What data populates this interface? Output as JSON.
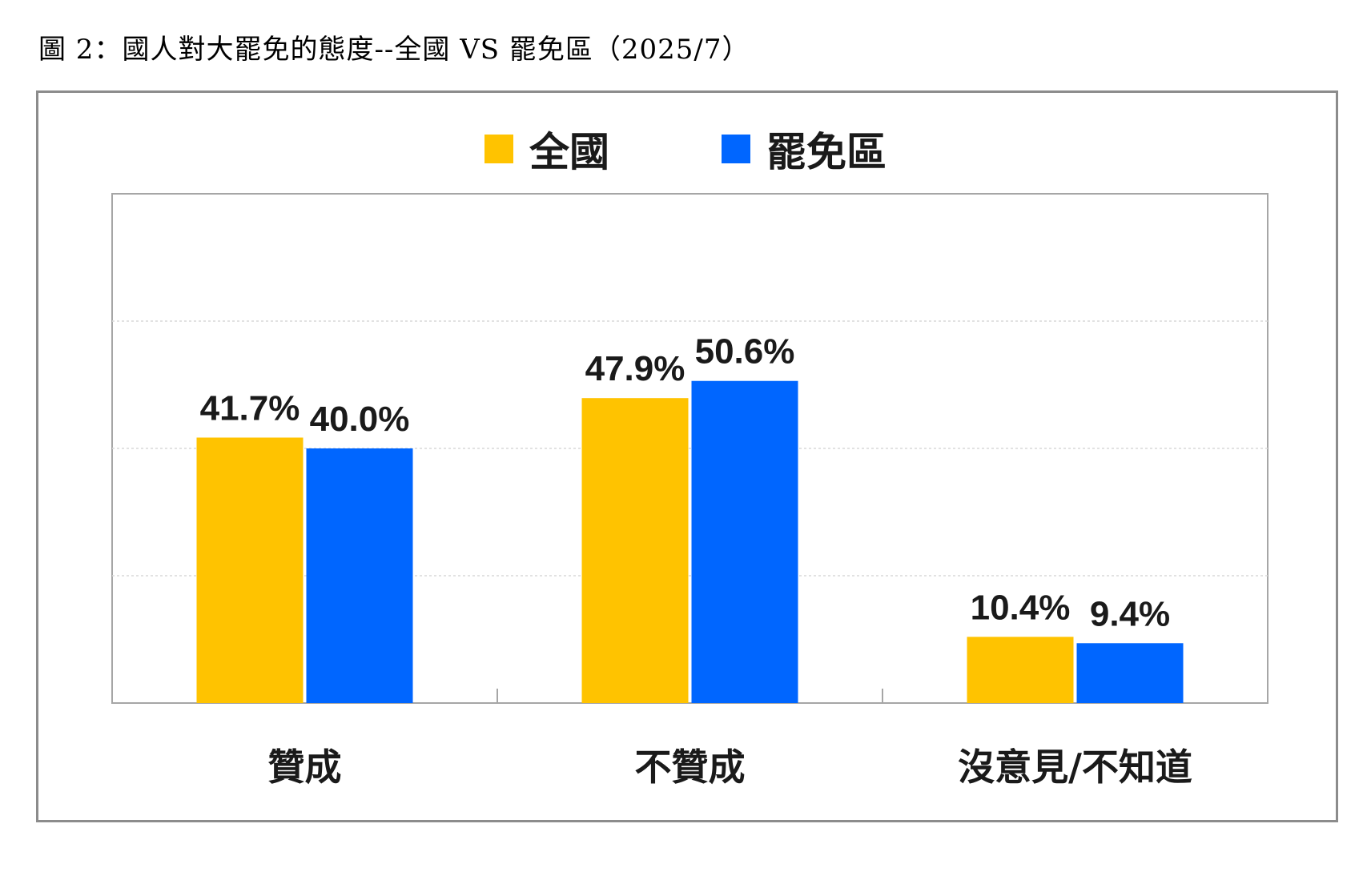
{
  "figure_title": "圖 2：國人對大罷免的態度--全國 VS 罷免區（2025/7）",
  "colors": {
    "national": "#FFC300",
    "recall_district": "#0066FF"
  },
  "chart_data": {
    "type": "bar",
    "categories": [
      "贊成",
      "不贊成",
      "沒意見/不知道"
    ],
    "series": [
      {
        "name": "全國",
        "values": [
          41.7,
          47.9,
          10.4
        ],
        "labels": [
          "41.7%",
          "47.9%",
          "10.4%"
        ]
      },
      {
        "name": "罷免區",
        "values": [
          40.0,
          50.6,
          9.4
        ],
        "labels": [
          "40.0%",
          "50.6%",
          "9.4%"
        ]
      }
    ],
    "ylim": [
      0,
      80
    ],
    "grid": true,
    "legend_position": "top-center"
  }
}
